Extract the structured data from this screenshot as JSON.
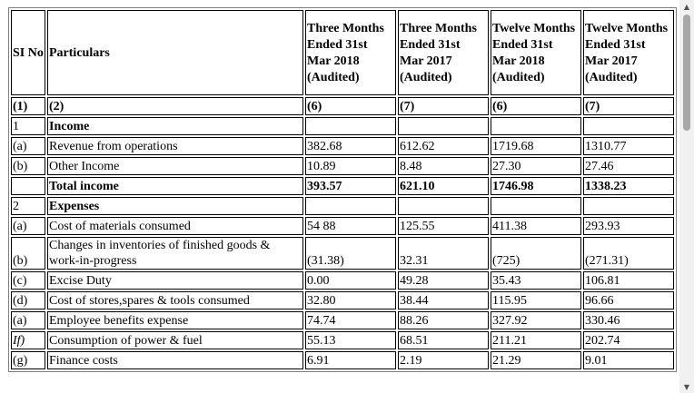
{
  "table": {
    "header": {
      "sno": "SI No",
      "particulars": "Particulars",
      "periods": [
        "Three Months Ended 31st Mar 2018 (Audited)",
        "Three Months Ended 31st Mar 2017 (Audited)",
        "Twelve Months Ended 31st Mar 2018 (Audited)",
        "Twelve Months Ended 31st Mar 2017 (Audited)"
      ]
    },
    "rows": [
      {
        "no": "(1)",
        "label": "(2)",
        "values": [
          "(6)",
          "(7)",
          "(6)",
          "(7)"
        ]
      },
      {
        "no": "1",
        "label": "Income",
        "values": [
          "",
          "",
          "",
          ""
        ]
      },
      {
        "no": "(a)",
        "label": "Revenue from operations",
        "values": [
          "382.68",
          "612.62",
          "1719.68",
          "1310.77"
        ]
      },
      {
        "no": "(b)",
        "label": "Other Income",
        "values": [
          "10.89",
          "8.48",
          "27.30",
          "27.46"
        ]
      },
      {
        "no": "",
        "label": "Total income",
        "values": [
          "393.57",
          "621.10",
          "1746.98",
          "1338.23"
        ]
      },
      {
        "no": "2",
        "label": "Expenses",
        "values": [
          "",
          "",
          "",
          ""
        ]
      },
      {
        "no": "(a)",
        "label": "Cost of materials consumed",
        "values": [
          "54 88",
          "125.55",
          "411.38",
          "293.93"
        ]
      },
      {
        "no": "(b)",
        "label": "Changes in inventories of finished goods & work-in-progress",
        "values": [
          "(31.38)",
          "32.31",
          "(725)",
          "(271.31)"
        ]
      },
      {
        "no": "(c)",
        "label": "Excise Duty",
        "values": [
          "0.00",
          "49.28",
          "35.43",
          "106.81"
        ]
      },
      {
        "no": "(d)",
        "label": "Cost of stores,spares & tools consumed",
        "values": [
          "32.80",
          "38.44",
          "115.95",
          "96.66"
        ]
      },
      {
        "no": "(a)",
        "label": "Employee benefits expense",
        "values": [
          "74.74",
          "88.26",
          "327.92",
          "330.46"
        ]
      },
      {
        "no": "If)",
        "label": "Consumption of power & fuel",
        "values": [
          "55.13",
          "68.51",
          "211.21",
          "202.74"
        ]
      },
      {
        "no": "(g)",
        "label": "Finance costs",
        "values": [
          "6.91",
          "2.19",
          "21.29",
          "9.01"
        ]
      }
    ]
  },
  "scrollbar": {
    "up_icon": "▲",
    "down_icon": "▼",
    "position": 0
  }
}
